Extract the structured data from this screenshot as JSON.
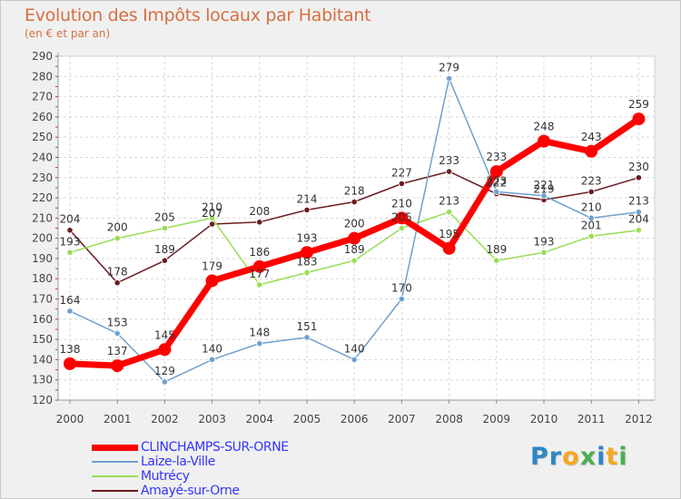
{
  "chart_data": {
    "type": "line",
    "title": "Evolution des Impôts locaux par Habitant",
    "subtitle": "(en € et par an)",
    "xlabel": "",
    "ylabel": "",
    "x": [
      "2000",
      "2001",
      "2002",
      "2003",
      "2004",
      "2005",
      "2006",
      "2007",
      "2008",
      "2009",
      "2010",
      "2011",
      "2012"
    ],
    "ylim": [
      120,
      290
    ],
    "ytick_step": 10,
    "grid": true,
    "series": [
      {
        "name": "Amayé-sur-Orne",
        "color": "#6b1c22",
        "width": 1.5,
        "values": [
          204,
          178,
          189,
          207,
          208,
          214,
          218,
          227,
          233,
          222,
          219,
          223,
          230
        ],
        "labels": [
          "204",
          "178",
          "189",
          "207",
          "208",
          "214",
          "218",
          "227",
          "233",
          "222",
          "219",
          "223",
          "230"
        ]
      },
      {
        "name": "Mutrécy",
        "color": "#99dd55",
        "width": 1.5,
        "values": [
          193,
          200,
          205,
          210,
          177,
          183,
          189,
          205,
          213,
          189,
          193,
          201,
          204
        ],
        "labels": [
          "193",
          "200",
          "205",
          "210",
          "177",
          "183",
          "189",
          "205",
          "213",
          "189",
          "193",
          "201",
          "204"
        ]
      },
      {
        "name": "Laize-la-Ville",
        "color": "#6ea1cf",
        "width": 1.5,
        "values": [
          164,
          153,
          129,
          140,
          148,
          151,
          140,
          170,
          279,
          223,
          221,
          210,
          213
        ],
        "labels": [
          "164",
          "153",
          "129",
          "140",
          "148",
          "151",
          "140",
          "170",
          "279",
          "223",
          "221",
          "210",
          "213"
        ]
      },
      {
        "name": "CLINCHAMPS-SUR-ORNE",
        "color": "#ff0000",
        "width": 7,
        "values": [
          138,
          137,
          145,
          179,
          186,
          193,
          200,
          210,
          195,
          233,
          248,
          243,
          259
        ],
        "labels": [
          "138",
          "137",
          "145",
          "179",
          "186",
          "193",
          "200",
          "210",
          "195",
          "233",
          "248",
          "243",
          "259"
        ]
      }
    ],
    "legend": {
      "placement": "bottom-left",
      "entries": [
        {
          "name": "CLINCHAMPS-SUR-ORNE",
          "color": "#ff0000"
        },
        {
          "name": "Laize-la-Ville",
          "color": "#6ea1cf"
        },
        {
          "name": "Mutrécy",
          "color": "#99dd55"
        },
        {
          "name": "Amayé-sur-Orne",
          "color": "#6b1c22"
        }
      ]
    }
  },
  "logo": {
    "letters": [
      {
        "char": "P",
        "color": "#2e86c8"
      },
      {
        "char": "r",
        "color": "#2e86c8"
      },
      {
        "char": "o",
        "color": "#f6a623"
      },
      {
        "char": "x",
        "color": "#4caf50"
      },
      {
        "char": "i",
        "color": "#2e86c8"
      },
      {
        "char": "t",
        "color": "#f6a623"
      },
      {
        "char": "i",
        "color": "#4caf50"
      }
    ]
  }
}
